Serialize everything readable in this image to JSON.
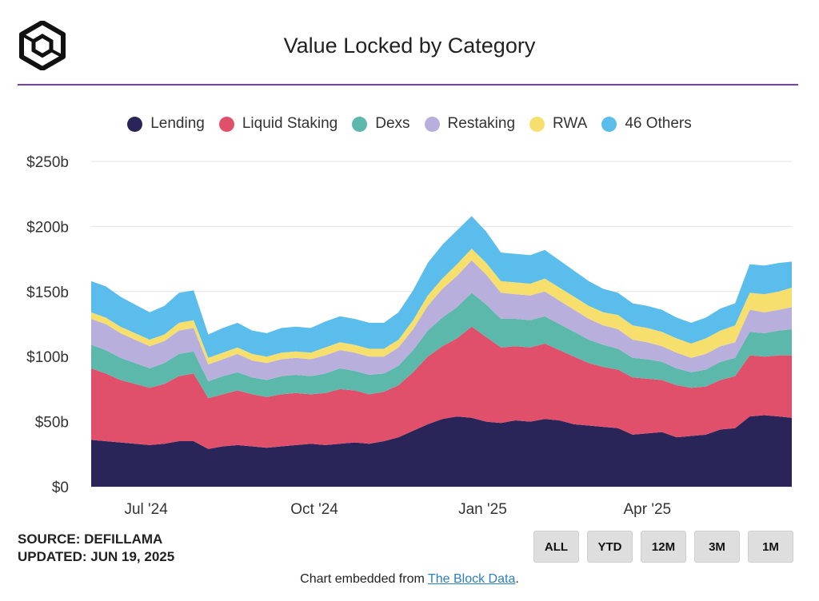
{
  "header": {
    "title": "Value Locked by Category",
    "logo_icon": "cube-logo-icon"
  },
  "legend": [
    {
      "label": "Lending",
      "color": "#2a2559"
    },
    {
      "label": "Liquid Staking",
      "color": "#e0506a"
    },
    {
      "label": "Dexs",
      "color": "#5cb8ab"
    },
    {
      "label": "Restaking",
      "color": "#b9afdc"
    },
    {
      "label": "RWA",
      "color": "#f6df6c"
    },
    {
      "label": "46 Others",
      "color": "#5bbdec"
    }
  ],
  "footer": {
    "source": "SOURCE: DEFILLAMA",
    "updated": "UPDATED: JUN 19, 2025",
    "buttons": [
      "ALL",
      "YTD",
      "12M",
      "3M",
      "1M"
    ],
    "embed_prefix": "Chart embedded from ",
    "embed_link": "The Block Data",
    "embed_suffix": "."
  },
  "chart_data": {
    "type": "area",
    "stacked": true,
    "title": "Value Locked by Category",
    "y_unit": "$b",
    "ylim": [
      0,
      250
    ],
    "y_ticks": [
      0,
      50,
      100,
      150,
      200,
      250
    ],
    "y_tick_labels": [
      "$0",
      "$50b",
      "$100b",
      "$150b",
      "$200b",
      "$250b"
    ],
    "xlim": [
      "2024-06-01",
      "2025-06-19"
    ],
    "x_ticks": [
      {
        "date": "2024-07-01",
        "label": "Jul '24"
      },
      {
        "date": "2024-10-01",
        "label": "Oct '24"
      },
      {
        "date": "2025-01-01",
        "label": "Jan '25"
      },
      {
        "date": "2025-04-01",
        "label": "Apr '25"
      }
    ],
    "grid": "horizontal",
    "legend_position": "top",
    "x": [
      "2024-06-01",
      "2024-06-09",
      "2024-06-17",
      "2024-06-25",
      "2024-07-03",
      "2024-07-11",
      "2024-07-19",
      "2024-07-27",
      "2024-08-04",
      "2024-08-12",
      "2024-08-20",
      "2024-08-28",
      "2024-09-05",
      "2024-09-13",
      "2024-09-21",
      "2024-09-29",
      "2024-10-07",
      "2024-10-15",
      "2024-10-23",
      "2024-10-31",
      "2024-11-08",
      "2024-11-16",
      "2024-11-24",
      "2024-12-02",
      "2024-12-10",
      "2024-12-18",
      "2024-12-26",
      "2025-01-03",
      "2025-01-11",
      "2025-01-19",
      "2025-01-27",
      "2025-02-04",
      "2025-02-12",
      "2025-02-20",
      "2025-02-28",
      "2025-03-08",
      "2025-03-16",
      "2025-03-24",
      "2025-04-01",
      "2025-04-09",
      "2025-04-17",
      "2025-04-25",
      "2025-05-03",
      "2025-05-11",
      "2025-05-19",
      "2025-05-27",
      "2025-06-04",
      "2025-06-12",
      "2025-06-19"
    ],
    "series": [
      {
        "name": "Lending",
        "values": [
          36,
          35,
          34,
          33,
          32,
          33,
          35,
          35,
          29,
          31,
          32,
          31,
          30,
          31,
          32,
          33,
          32,
          33,
          34,
          33,
          35,
          38,
          43,
          48,
          52,
          54,
          53,
          50,
          49,
          51,
          50,
          52,
          51,
          48,
          47,
          46,
          45,
          40,
          41,
          42,
          38,
          39,
          40,
          44,
          45,
          54,
          55,
          54,
          53
        ]
      },
      {
        "name": "Liquid Staking",
        "values": [
          55,
          52,
          48,
          46,
          44,
          46,
          50,
          52,
          39,
          40,
          42,
          40,
          39,
          40,
          40,
          38,
          40,
          42,
          40,
          38,
          38,
          40,
          45,
          52,
          56,
          60,
          70,
          65,
          58,
          57,
          57,
          58,
          54,
          52,
          48,
          46,
          45,
          44,
          42,
          40,
          40,
          37,
          37,
          38,
          40,
          47,
          45,
          47,
          48
        ]
      },
      {
        "name": "Dexs",
        "values": [
          18,
          18,
          17,
          16,
          15,
          16,
          17,
          17,
          13,
          14,
          14,
          13,
          13,
          14,
          14,
          14,
          15,
          16,
          15,
          15,
          14,
          15,
          17,
          20,
          22,
          24,
          26,
          25,
          22,
          21,
          21,
          21,
          20,
          19,
          18,
          17,
          16,
          15,
          15,
          14,
          13,
          12,
          13,
          14,
          14,
          18,
          18,
          19,
          20
        ]
      },
      {
        "name": "Restaking",
        "values": [
          20,
          20,
          19,
          18,
          17,
          17,
          18,
          18,
          13,
          13,
          14,
          13,
          13,
          13,
          13,
          13,
          14,
          14,
          14,
          14,
          13,
          14,
          16,
          19,
          22,
          24,
          25,
          23,
          20,
          19,
          19,
          19,
          18,
          17,
          16,
          15,
          15,
          14,
          13,
          12,
          12,
          11,
          12,
          12,
          12,
          17,
          16,
          16,
          17
        ]
      },
      {
        "name": "RWA",
        "values": [
          5,
          5,
          5,
          5,
          5,
          5,
          6,
          6,
          5,
          5,
          5,
          5,
          5,
          5,
          5,
          5,
          6,
          6,
          6,
          6,
          6,
          6,
          7,
          8,
          8,
          9,
          9,
          9,
          9,
          9,
          9,
          10,
          10,
          10,
          10,
          10,
          11,
          11,
          11,
          11,
          11,
          11,
          12,
          12,
          13,
          13,
          14,
          14,
          15
        ]
      },
      {
        "name": "46 Others",
        "values": [
          24,
          24,
          23,
          22,
          21,
          22,
          23,
          23,
          18,
          19,
          19,
          18,
          18,
          19,
          19,
          19,
          20,
          20,
          20,
          20,
          20,
          21,
          23,
          25,
          26,
          26,
          25,
          24,
          22,
          22,
          22,
          22,
          21,
          20,
          19,
          18,
          17,
          17,
          17,
          17,
          16,
          16,
          16,
          17,
          17,
          22,
          22,
          22,
          20
        ]
      }
    ]
  }
}
